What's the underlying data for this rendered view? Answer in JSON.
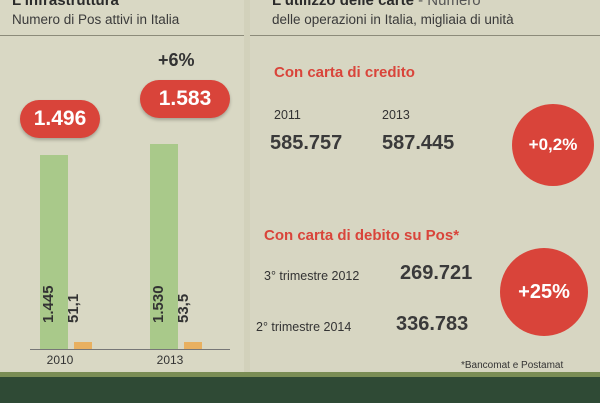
{
  "left_panel": {
    "title": "L'infrastruttura",
    "subtitle": "Numero di Pos attivi in Italia",
    "change_label": "+6%"
  },
  "right_panel": {
    "title": "L'utilizzo delle carte",
    "title_suffix": " - Numero",
    "subtitle": "delle operazioni in Italia, migliaia di unità",
    "credit": {
      "heading": "Con carta di credito",
      "year1": "2011",
      "year2": "2013",
      "value1": "585.757",
      "value2": "587.445",
      "change": "+0,2%"
    },
    "debit": {
      "heading": "Con carta di debito su Pos*",
      "period1": "3° trimestre 2012",
      "period2": "2° trimestre 2014",
      "value1": "269.721",
      "value2": "336.783",
      "change": "+25%"
    },
    "footnote": "*Bancomat e Postamat"
  },
  "colors": {
    "accent_red": "#d9443a",
    "bar_green": "#a9c98a",
    "bar_orange": "#e8b060"
  },
  "chart_data": {
    "type": "bar",
    "categories": [
      "2010",
      "2013"
    ],
    "totals": [
      "1.496",
      "1.583"
    ],
    "series": [
      {
        "values": [
          1445,
          1530
        ],
        "labels": [
          "1.445",
          "1.530"
        ]
      },
      {
        "values": [
          51.1,
          53.5
        ],
        "labels": [
          "51,1",
          "53,5"
        ]
      }
    ]
  }
}
